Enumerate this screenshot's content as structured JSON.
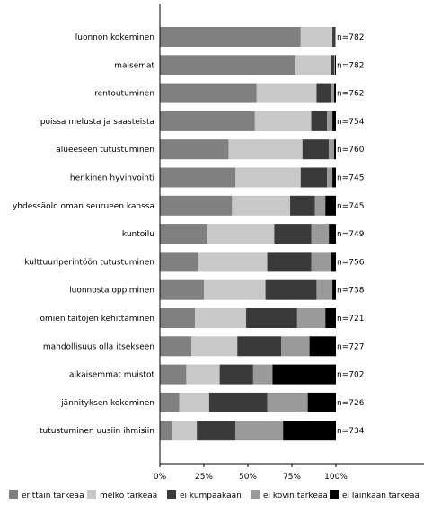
{
  "chart_data": {
    "type": "bar",
    "orientation": "horizontal",
    "stacked": "percent",
    "categories": [
      "luonnon kokeminen",
      "maisemat",
      "rentoutuminen",
      "poissa melusta ja saasteista",
      "alueeseen tutustuminen",
      "henkinen hyvinvointi",
      "yhdessäolo oman seurueen kanssa",
      "kuntoilu",
      "kulttuuriperintöön tutustuminen",
      "luonnosta oppiminen",
      "omien taitojen kehittäminen",
      "mahdollisuus olla itsekseen",
      "aikaisemmat muistot",
      "jännityksen kokeminen",
      "tutustuminen uusiin ihmisiin"
    ],
    "n_labels": [
      "n=782",
      "n=782",
      "n=762",
      "n=754",
      "n=760",
      "n=745",
      "n=745",
      "n=749",
      "n=756",
      "n=738",
      "n=721",
      "n=727",
      "n=702",
      "n=726",
      "n=734"
    ],
    "series": [
      {
        "name": "erittäin tärkeää",
        "color": "#808080",
        "values": [
          80,
          77,
          55,
          54,
          39,
          43,
          41,
          27,
          22,
          25,
          20,
          18,
          15,
          11,
          7
        ]
      },
      {
        "name": "melko tärkeää",
        "color": "#c8c8c8",
        "values": [
          18,
          20,
          34,
          32,
          42,
          37,
          33,
          38,
          39,
          35,
          29,
          26,
          19,
          17,
          14
        ]
      },
      {
        "name": "ei kumpaakaan",
        "color": "#3a3a3a",
        "values": [
          1.5,
          2,
          8,
          9,
          15,
          15,
          14,
          21,
          25,
          29,
          29,
          25,
          19,
          33,
          22
        ]
      },
      {
        "name": "ei kovin tärkeää",
        "color": "#9a9a9a",
        "values": [
          0.5,
          0.5,
          2,
          3,
          3,
          3,
          6,
          10,
          11,
          9,
          16,
          16,
          11,
          23,
          27
        ]
      },
      {
        "name": "ei lainkaan tärkeää",
        "color": "#000000",
        "values": [
          0,
          0.5,
          1,
          2,
          1,
          2,
          6,
          4,
          3,
          2,
          6,
          15,
          36,
          16,
          30
        ]
      }
    ],
    "xlim": [
      0,
      100
    ],
    "xticks": [
      "0%",
      "25%",
      "50%",
      "75%",
      "100%"
    ],
    "legend_position": "bottom"
  }
}
